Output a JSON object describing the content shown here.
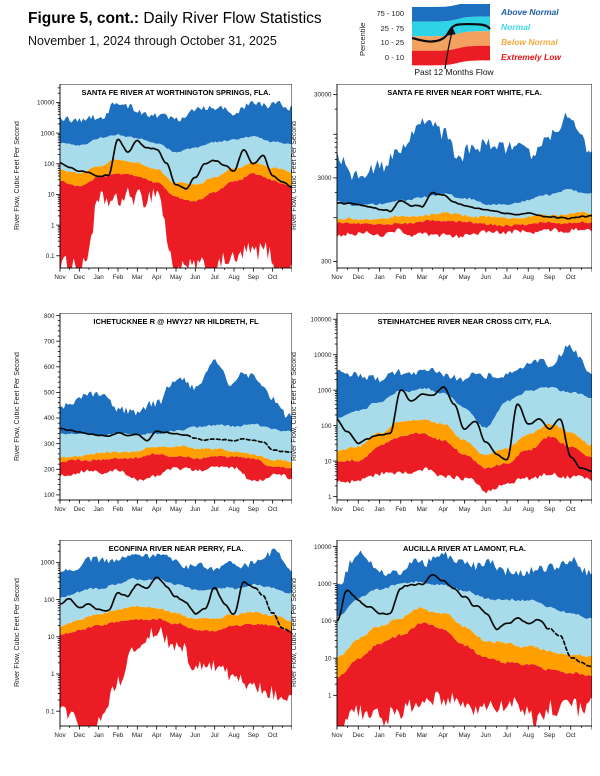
{
  "header": {
    "figure_label": "Figure 5, cont.:",
    "title": " Daily River Flow Statistics",
    "subtitle": "November 1, 2024 through October 31, 2025"
  },
  "legend": {
    "axis_label": "Percentile",
    "rows": [
      {
        "range": "75 - 100",
        "label": "Above Normal",
        "band_color": "#1d6fc0",
        "label_color": "#1d5fa8"
      },
      {
        "range": "25 - 75",
        "label": "Normal",
        "band_color": "#2fd3e6",
        "label_color": "#3cd6e8"
      },
      {
        "range": "10 - 25",
        "label": "Below Normal",
        "band_color": "#f2a25e",
        "label_color": "#f2a93c"
      },
      {
        "range": "0 - 10",
        "label": "Extremely Low",
        "band_color": "#ec1c24",
        "label_color": "#e51616"
      }
    ],
    "flow_label": "Past 12 Months Flow"
  },
  "months": [
    "Nov",
    "Dec",
    "Jan",
    "Feb",
    "Mar",
    "Apr",
    "May",
    "Jun",
    "Jul",
    "Aug",
    "Sep",
    "Oct"
  ],
  "ylabel": "River Flow, Cubic Feet Per Second",
  "colors": {
    "above_normal": "#1d6fc0",
    "normal": "#a9dcea",
    "below_normal": "#ff9f00",
    "extremely_low": "#ec1c24",
    "flow_line": "#0a0a0a"
  },
  "chart_data": [
    {
      "type": "area",
      "title": "SANTA FE RIVER AT WORTHINGTON SPRINGS, FLA.",
      "scale": "log",
      "ylabel": "River Flow, Cubic Feet Per Second",
      "ylim": [
        0.04,
        40000
      ],
      "yticks": [
        0.1,
        1,
        10,
        100,
        1000,
        10000
      ],
      "series": {
        "max": [
          3000,
          2600,
          3500,
          8000,
          6000,
          4500,
          3500,
          7000,
          10000,
          6000,
          13000,
          9000,
          6000
        ],
        "p75": [
          500,
          420,
          650,
          900,
          750,
          450,
          250,
          350,
          550,
          650,
          800,
          550,
          450
        ],
        "p25": [
          60,
          50,
          90,
          130,
          110,
          60,
          25,
          20,
          35,
          70,
          110,
          70,
          50
        ],
        "p10": [
          25,
          20,
          35,
          45,
          40,
          25,
          8,
          6,
          12,
          28,
          45,
          28,
          20
        ],
        "min": [
          0.05,
          0.05,
          3,
          7,
          7,
          5,
          0.05,
          0.05,
          0.05,
          0.05,
          0.3,
          0.05,
          0.05
        ],
        "flow": [
          110,
          75,
          55,
          50,
          42,
          45,
          700,
          260,
          600,
          350,
          300,
          100,
          20,
          15,
          35,
          100,
          130,
          90,
          60,
          300,
          100,
          180,
          40,
          25,
          17
        ]
      },
      "noise": {
        "max": 0.2,
        "mid": 0.05,
        "min": 0.55,
        "flow": 0.04
      }
    },
    {
      "type": "area",
      "title": "SANTA FE RIVER NEAR FORT WHITE, FLA.",
      "scale": "log",
      "ylabel": "River Flow, Cubic Feet Per Second",
      "ylim": [
        250,
        40000
      ],
      "yticks": [
        300,
        3000,
        30000
      ],
      "series": {
        "max": [
          4500,
          3500,
          4500,
          6000,
          12000,
          9000,
          6000,
          5500,
          7000,
          6000,
          9000,
          18000,
          7000
        ],
        "p75": [
          1500,
          1400,
          1450,
          1550,
          1800,
          1900,
          1650,
          1500,
          1500,
          1600,
          1900,
          2100,
          1950
        ],
        "p25": [
          1000,
          950,
          980,
          1020,
          1100,
          1150,
          1060,
          1000,
          980,
          1000,
          1100,
          1150,
          1100
        ],
        "p10": [
          850,
          820,
          830,
          860,
          900,
          920,
          870,
          850,
          830,
          850,
          880,
          900,
          880
        ],
        "min": [
          650,
          620,
          640,
          660,
          680,
          600,
          660,
          640,
          620,
          650,
          670,
          700,
          680
        ],
        "flow": [
          1550,
          1480,
          1400,
          1320,
          1250,
          1200,
          1620,
          1400,
          1380,
          1950,
          1800,
          1500,
          1380,
          1280,
          1200,
          1150,
          1100,
          1060,
          1120,
          1040,
          1000,
          980,
          960,
          1010,
          1040
        ]
      },
      "noise": {
        "max": 0.16,
        "mid": 0.025,
        "min": 0.05,
        "flow": 0.015
      }
    },
    {
      "type": "area",
      "title": "ICHETUCKNEE R @ HWY27 NR HILDRETH, FL",
      "scale": "linear",
      "ylabel": "River Flow, Cubic Feet Per Second",
      "ylim": [
        80,
        810
      ],
      "yticks": [
        100,
        200,
        300,
        400,
        500,
        600,
        700,
        800
      ],
      "series": {
        "max": [
          430,
          480,
          500,
          440,
          420,
          470,
          540,
          530,
          620,
          540,
          580,
          470,
          400
        ],
        "p75": [
          340,
          335,
          330,
          335,
          330,
          340,
          350,
          365,
          375,
          365,
          380,
          355,
          345
        ],
        "p25": [
          250,
          255,
          260,
          265,
          270,
          290,
          290,
          280,
          285,
          270,
          262,
          235,
          230
        ],
        "p10": [
          225,
          235,
          240,
          240,
          245,
          255,
          250,
          245,
          250,
          245,
          238,
          210,
          205
        ],
        "min": [
          165,
          185,
          190,
          185,
          160,
          185,
          195,
          195,
          200,
          200,
          150,
          180,
          160
        ],
        "flow": [
          360,
          352,
          345,
          338,
          332,
          328,
          342,
          332,
          336,
          312,
          350,
          344,
          338,
          332,
          320,
          312,
          318,
          314,
          310,
          318,
          314,
          308,
          276,
          270,
          266
        ]
      },
      "noise": {
        "max": 28,
        "mid": 7,
        "min": 13,
        "flow": 3
      },
      "flow_dash_from": 0.55
    },
    {
      "type": "area",
      "title": "STEINHATCHEE RIVER NEAR CROSS CITY, FLA.",
      "scale": "log",
      "ylabel": "River Flow, Cubic Feet Per Second",
      "ylim": [
        0.8,
        150000
      ],
      "yticks": [
        1,
        10,
        100,
        1000,
        10000,
        100000
      ],
      "series": {
        "max": [
          3000,
          2500,
          2800,
          3500,
          4000,
          3000,
          2500,
          2200,
          3500,
          5000,
          6000,
          15000,
          4000
        ],
        "p75": [
          150,
          250,
          500,
          900,
          1100,
          800,
          300,
          90,
          500,
          900,
          1100,
          900,
          600
        ],
        "p25": [
          20,
          25,
          60,
          120,
          150,
          100,
          40,
          15,
          25,
          60,
          120,
          60,
          25
        ],
        "p10": [
          9,
          10,
          25,
          50,
          60,
          40,
          15,
          6,
          9,
          20,
          45,
          25,
          12
        ],
        "min": [
          3,
          3,
          4,
          5,
          5,
          4,
          3,
          1.5,
          2,
          3,
          4,
          4,
          3
        ],
        "flow": [
          150,
          70,
          35,
          45,
          55,
          60,
          1100,
          500,
          700,
          650,
          1250,
          400,
          80,
          130,
          30,
          15,
          10,
          380,
          100,
          150,
          80,
          150,
          12,
          6,
          5
        ]
      },
      "noise": {
        "max": 0.18,
        "mid": 0.06,
        "min": 0.12,
        "flow": 0.05
      }
    },
    {
      "type": "area",
      "title": "ECONFINA RIVER NEAR PERRY, FLA.",
      "scale": "log",
      "ylabel": "River Flow, Cubic Feet Per Second",
      "ylim": [
        0.04,
        4000
      ],
      "yticks": [
        0.1,
        1,
        10,
        100,
        1000
      ],
      "series": {
        "max": [
          600,
          900,
          1100,
          1100,
          1300,
          1600,
          1000,
          800,
          700,
          900,
          1100,
          2200,
          700
        ],
        "p75": [
          120,
          160,
          200,
          280,
          350,
          350,
          250,
          180,
          200,
          200,
          260,
          220,
          150
        ],
        "p25": [
          20,
          28,
          40,
          55,
          65,
          60,
          45,
          30,
          28,
          38,
          50,
          40,
          25
        ],
        "p10": [
          12,
          16,
          22,
          27,
          32,
          30,
          22,
          15,
          14,
          18,
          22,
          18,
          14
        ],
        "min": [
          0.06,
          0.04,
          0.04,
          0.8,
          8,
          18,
          6,
          1,
          2.5,
          1,
          0.6,
          0.4,
          0.3
        ],
        "flow": [
          70,
          100,
          60,
          75,
          55,
          50,
          150,
          120,
          250,
          180,
          350,
          220,
          120,
          90,
          45,
          60,
          200,
          80,
          45,
          300,
          200,
          120,
          40,
          18,
          14
        ]
      },
      "noise": {
        "max": 0.16,
        "mid": 0.05,
        "min": 0.35,
        "flow": 0.05
      },
      "flow_dash_from": 0.84
    },
    {
      "type": "area",
      "title": "AUCILLA RIVER AT LAMONT, FLA.",
      "scale": "log",
      "ylabel": "River Flow, Cubic Feet Per Second",
      "ylim": [
        0.15,
        15000
      ],
      "yticks": [
        1,
        10,
        100,
        1000,
        10000
      ],
      "series": {
        "max": [
          800,
          6000,
          2500,
          2500,
          4000,
          8000,
          5000,
          3000,
          3000,
          2500,
          2500,
          6000,
          2000
        ],
        "p75": [
          120,
          400,
          800,
          1000,
          1200,
          900,
          600,
          400,
          400,
          350,
          250,
          150,
          120
        ],
        "p25": [
          10,
          35,
          70,
          120,
          220,
          160,
          70,
          30,
          25,
          20,
          15,
          12,
          10
        ],
        "p10": [
          3,
          10,
          22,
          45,
          90,
          60,
          22,
          10,
          8,
          7,
          5,
          4,
          3
        ],
        "min": [
          0.2,
          0.3,
          0.5,
          0.3,
          0.4,
          2,
          0.5,
          0.3,
          0.4,
          0.3,
          0.5,
          1,
          0.5
        ],
        "flow": [
          100,
          700,
          400,
          250,
          160,
          150,
          700,
          900,
          1000,
          1900,
          1300,
          800,
          450,
          250,
          150,
          60,
          90,
          120,
          80,
          100,
          60,
          40,
          12,
          8,
          6
        ]
      },
      "noise": {
        "max": 0.2,
        "mid": 0.07,
        "min": 0.45,
        "flow": 0.06
      },
      "flow_dash_from": 0.82
    }
  ]
}
